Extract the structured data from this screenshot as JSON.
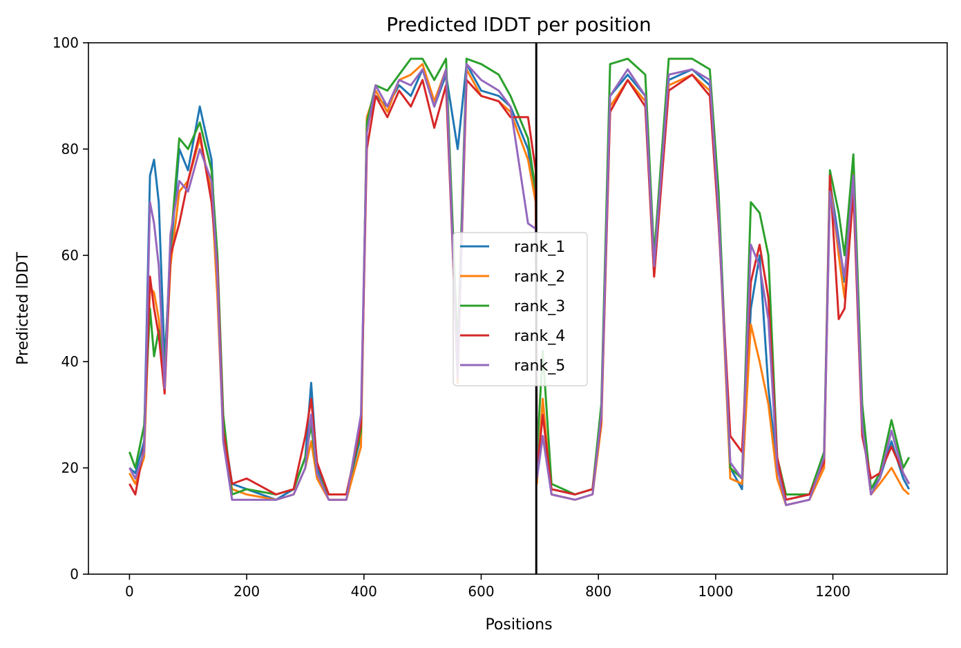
{
  "chart_data": {
    "type": "line",
    "title": "Predicted lDDT per position",
    "xlabel": "Positions",
    "ylabel": "Predicted lDDT",
    "xlim": [
      -70,
      1395
    ],
    "ylim": [
      0,
      100
    ],
    "xticks": [
      0,
      200,
      400,
      600,
      800,
      1000,
      1200
    ],
    "yticks": [
      0,
      20,
      40,
      60,
      80,
      100
    ],
    "grid": false,
    "legend_position": "center",
    "vline_x": 694,
    "vline_color": "#000000",
    "series": [
      {
        "name": "rank_1",
        "color": "#1f77b4",
        "x": [
          0,
          10,
          25,
          35,
          42,
          50,
          60,
          70,
          85,
          100,
          120,
          140,
          150,
          160,
          175,
          200,
          250,
          280,
          300,
          310,
          320,
          340,
          370,
          395,
          405,
          420,
          440,
          460,
          480,
          500,
          520,
          540,
          560,
          575,
          600,
          630,
          650,
          680,
          693,
          695,
          705,
          720,
          760,
          790,
          805,
          820,
          850,
          880,
          895,
          920,
          960,
          990,
          1005,
          1025,
          1045,
          1060,
          1075,
          1090,
          1105,
          1120,
          1160,
          1185,
          1195,
          1210,
          1220,
          1235,
          1250,
          1265,
          1280,
          1300,
          1320,
          1330
        ],
        "y": [
          20,
          19,
          25,
          75,
          78,
          70,
          40,
          60,
          80,
          76,
          88,
          78,
          55,
          28,
          17,
          16,
          14,
          16,
          22,
          36,
          20,
          15,
          15,
          26,
          84,
          90,
          88,
          92,
          90,
          95,
          88,
          94,
          80,
          96,
          91,
          90,
          88,
          80,
          70,
          18,
          26,
          16,
          15,
          16,
          30,
          90,
          94,
          90,
          57,
          93,
          95,
          92,
          70,
          20,
          16,
          50,
          60,
          35,
          20,
          14,
          15,
          22,
          74,
          63,
          55,
          74,
          30,
          16,
          18,
          25,
          18,
          16
        ]
      },
      {
        "name": "rank_2",
        "color": "#ff7f0e",
        "x": [
          0,
          10,
          25,
          35,
          42,
          50,
          60,
          70,
          85,
          100,
          120,
          140,
          150,
          160,
          175,
          200,
          250,
          280,
          300,
          310,
          320,
          340,
          370,
          395,
          405,
          420,
          440,
          460,
          480,
          500,
          520,
          540,
          560,
          575,
          600,
          630,
          650,
          680,
          693,
          695,
          705,
          720,
          760,
          790,
          805,
          820,
          850,
          880,
          895,
          920,
          960,
          990,
          1005,
          1025,
          1045,
          1060,
          1075,
          1090,
          1105,
          1120,
          1160,
          1185,
          1195,
          1210,
          1220,
          1235,
          1250,
          1265,
          1280,
          1300,
          1320,
          1330
        ],
        "y": [
          19,
          17,
          22,
          54,
          53,
          48,
          36,
          58,
          72,
          74,
          82,
          72,
          52,
          26,
          16,
          15,
          14,
          15,
          20,
          25,
          18,
          14,
          14,
          24,
          86,
          91,
          87,
          93,
          94,
          96,
          89,
          95,
          36,
          95,
          90,
          89,
          87,
          78,
          70,
          17,
          33,
          15,
          14,
          15,
          28,
          88,
          93,
          89,
          56,
          92,
          94,
          91,
          68,
          18,
          17,
          47,
          40,
          32,
          18,
          13,
          14,
          20,
          74,
          60,
          52,
          76,
          28,
          15,
          17,
          20,
          16,
          15
        ]
      },
      {
        "name": "rank_3",
        "color": "#2ca02c",
        "x": [
          0,
          10,
          25,
          35,
          42,
          50,
          60,
          70,
          85,
          100,
          120,
          140,
          150,
          160,
          175,
          200,
          250,
          280,
          300,
          310,
          320,
          340,
          370,
          395,
          405,
          420,
          440,
          460,
          480,
          500,
          520,
          540,
          560,
          575,
          600,
          630,
          650,
          680,
          693,
          695,
          705,
          720,
          760,
          790,
          805,
          820,
          850,
          880,
          895,
          920,
          960,
          990,
          1005,
          1025,
          1045,
          1060,
          1075,
          1090,
          1105,
          1120,
          1160,
          1185,
          1195,
          1210,
          1220,
          1235,
          1250,
          1265,
          1280,
          1300,
          1320,
          1330
        ],
        "y": [
          23,
          20,
          28,
          50,
          41,
          46,
          38,
          62,
          82,
          80,
          85,
          76,
          60,
          30,
          15,
          16,
          15,
          16,
          22,
          28,
          19,
          15,
          15,
          27,
          85,
          92,
          91,
          94,
          97,
          97,
          93,
          97,
          42,
          97,
          96,
          94,
          90,
          82,
          72,
          22,
          42,
          17,
          15,
          16,
          32,
          96,
          97,
          94,
          60,
          97,
          97,
          95,
          72,
          20,
          18,
          70,
          68,
          60,
          22,
          15,
          15,
          23,
          76,
          68,
          60,
          79,
          32,
          16,
          19,
          29,
          20,
          22
        ]
      },
      {
        "name": "rank_4",
        "color": "#d62728",
        "x": [
          0,
          10,
          25,
          35,
          42,
          50,
          60,
          70,
          85,
          100,
          120,
          140,
          150,
          160,
          175,
          200,
          250,
          280,
          300,
          310,
          320,
          340,
          370,
          395,
          405,
          420,
          440,
          460,
          480,
          500,
          520,
          540,
          560,
          575,
          600,
          630,
          650,
          680,
          693,
          695,
          705,
          720,
          760,
          790,
          805,
          820,
          850,
          880,
          895,
          920,
          960,
          990,
          1005,
          1025,
          1045,
          1060,
          1075,
          1090,
          1105,
          1120,
          1160,
          1185,
          1195,
          1210,
          1220,
          1235,
          1250,
          1265,
          1280,
          1300,
          1320,
          1330
        ],
        "y": [
          17,
          15,
          24,
          56,
          50,
          45,
          34,
          60,
          66,
          74,
          83,
          70,
          58,
          27,
          17,
          18,
          15,
          16,
          26,
          33,
          21,
          15,
          15,
          28,
          80,
          90,
          86,
          91,
          88,
          93,
          84,
          92,
          38,
          93,
          90,
          89,
          86,
          86,
          76,
          19,
          30,
          16,
          15,
          16,
          29,
          87,
          93,
          88,
          56,
          91,
          94,
          90,
          66,
          26,
          23,
          55,
          62,
          52,
          22,
          14,
          15,
          21,
          75,
          48,
          50,
          72,
          26,
          18,
          19,
          24,
          19,
          17
        ]
      },
      {
        "name": "rank_5",
        "color": "#9467bd",
        "x": [
          0,
          10,
          25,
          35,
          42,
          50,
          60,
          70,
          85,
          100,
          120,
          140,
          150,
          160,
          175,
          200,
          250,
          280,
          300,
          310,
          320,
          340,
          370,
          395,
          405,
          420,
          440,
          460,
          480,
          500,
          520,
          540,
          560,
          575,
          600,
          630,
          650,
          680,
          693,
          695,
          705,
          720,
          760,
          790,
          805,
          820,
          850,
          880,
          895,
          920,
          960,
          990,
          1005,
          1025,
          1045,
          1060,
          1075,
          1090,
          1105,
          1120,
          1160,
          1185,
          1195,
          1210,
          1220,
          1235,
          1250,
          1265,
          1280,
          1300,
          1320,
          1330
        ],
        "y": [
          20,
          18,
          23,
          70,
          66,
          58,
          35,
          64,
          74,
          72,
          80,
          74,
          56,
          25,
          14,
          14,
          14,
          15,
          20,
          30,
          19,
          14,
          14,
          30,
          83,
          92,
          88,
          93,
          92,
          95,
          88,
          95,
          37,
          96,
          93,
          91,
          88,
          66,
          65,
          18,
          26,
          15,
          14,
          15,
          30,
          90,
          95,
          90,
          58,
          94,
          95,
          93,
          68,
          21,
          18,
          62,
          58,
          48,
          20,
          13,
          14,
          22,
          72,
          62,
          56,
          75,
          28,
          15,
          18,
          27,
          19,
          17
        ]
      }
    ]
  }
}
